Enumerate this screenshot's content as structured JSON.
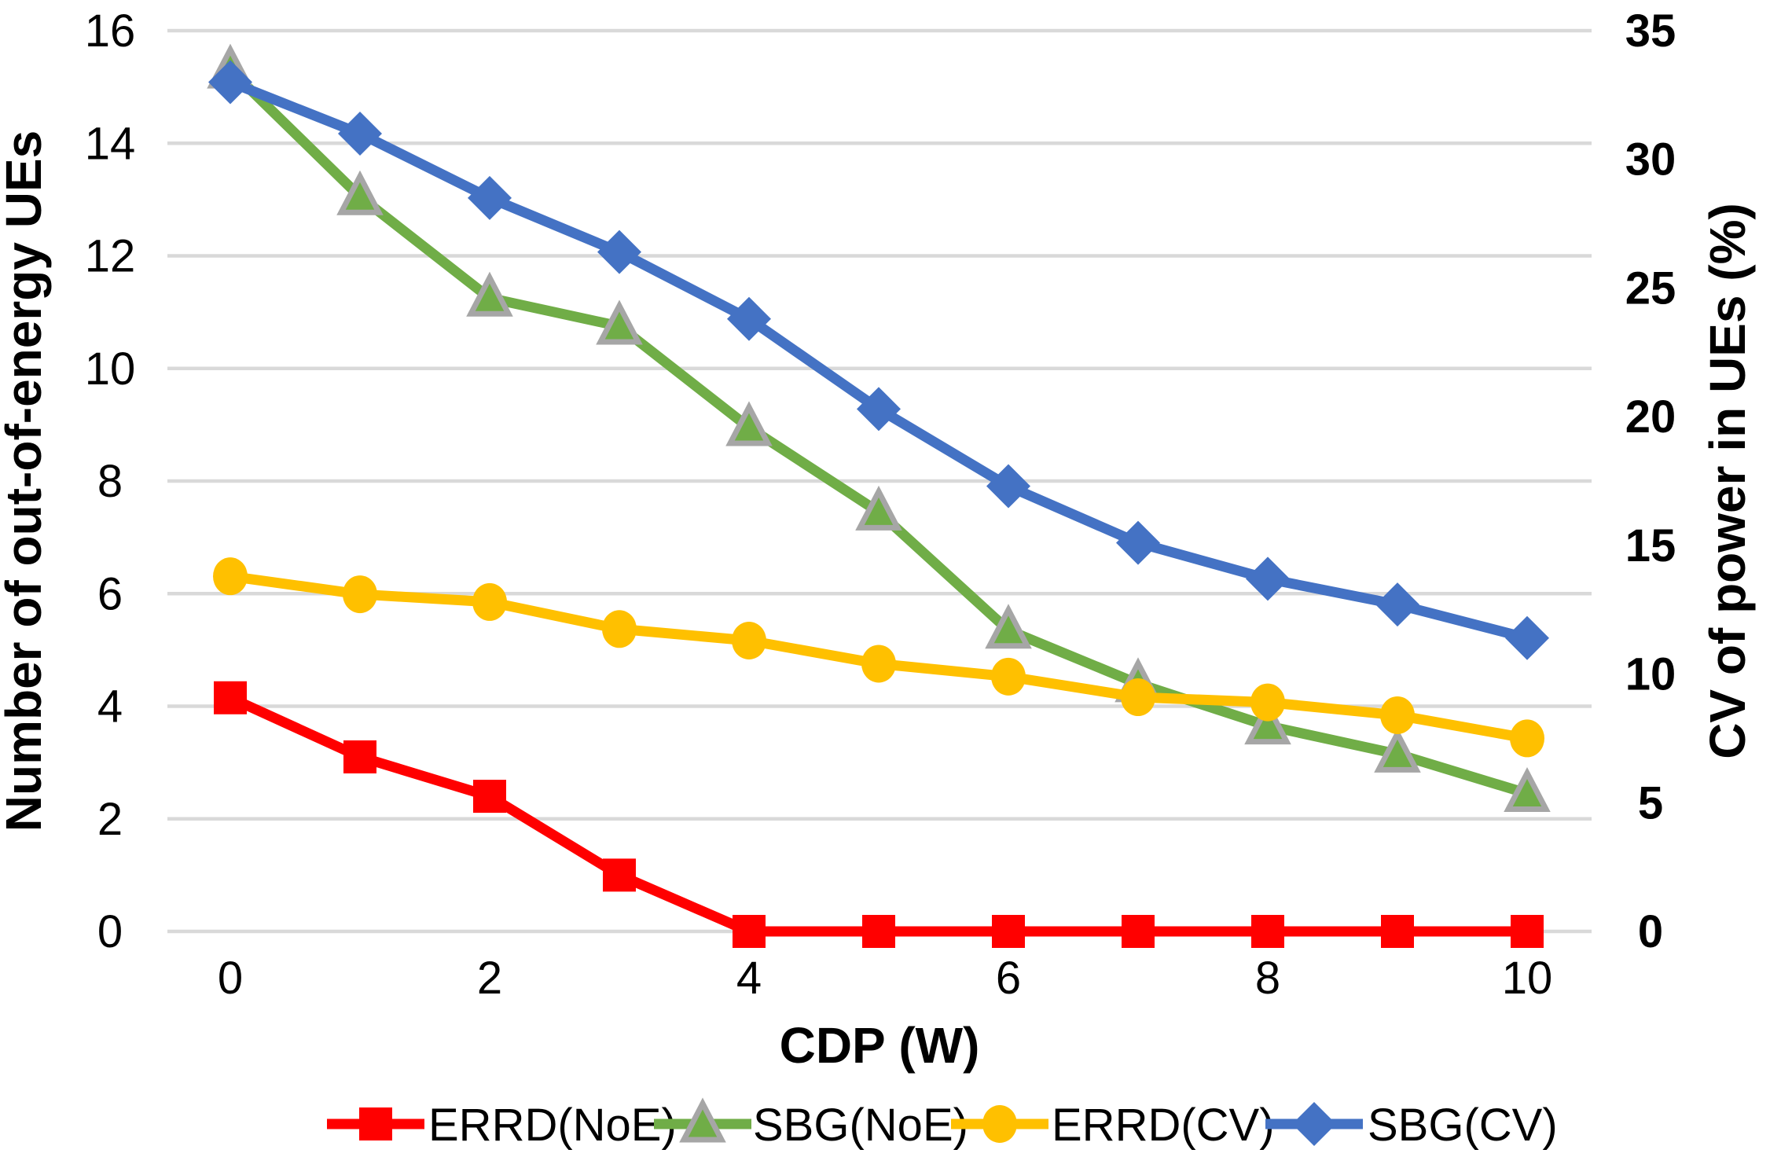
{
  "figure": {
    "background_color": "#FFFFFF",
    "grid_color": "#D9D9D9",
    "text_color": "#000000"
  },
  "chart_data": {
    "type": "line",
    "x": [
      0,
      1,
      2,
      3,
      4,
      5,
      6,
      7,
      8,
      9,
      10
    ],
    "x_axis": {
      "title": "CDP (W)",
      "tick_labels": [
        "0",
        "2",
        "4",
        "6",
        "8",
        "10"
      ],
      "tick_values": [
        0,
        2,
        4,
        6,
        8,
        10
      ],
      "range": [
        0,
        10
      ]
    },
    "left_axis": {
      "title": "Number of out-of-energy UEs",
      "ticks": [
        0,
        2,
        4,
        6,
        8,
        10,
        12,
        14,
        16
      ],
      "range": [
        0,
        16
      ]
    },
    "right_axis": {
      "title": "CV of power in UEs (%)",
      "ticks": [
        0,
        5,
        10,
        15,
        20,
        25,
        30,
        35
      ],
      "range": [
        0,
        35
      ]
    },
    "grid": true,
    "legend_position": "bottom",
    "series": [
      {
        "name": "ERRD(NoE)",
        "axis": "left",
        "color": "#FF0000",
        "marker": "square",
        "values": [
          4.15,
          3.1,
          2.4,
          1.0,
          0,
          0,
          0,
          0,
          0,
          0,
          0
        ]
      },
      {
        "name": "SBG(NoE)",
        "axis": "left",
        "color": "#70AD47",
        "marker": "triangle",
        "marker_outline": "#A6A6A6",
        "values": [
          15.3,
          13.05,
          11.25,
          10.75,
          8.95,
          7.45,
          5.35,
          4.4,
          3.65,
          3.15,
          2.45
        ]
      },
      {
        "name": "ERRD(CV)",
        "axis": "right",
        "color": "#FFC000",
        "marker": "circle",
        "values": [
          13.8,
          13.1,
          12.8,
          11.75,
          11.3,
          10.4,
          9.9,
          9.1,
          8.9,
          8.4,
          7.5
        ]
      },
      {
        "name": "SBG(CV)",
        "axis": "right",
        "color": "#4472C4",
        "marker": "diamond",
        "values": [
          33.0,
          31.0,
          28.5,
          26.4,
          23.8,
          20.3,
          17.3,
          15.1,
          13.7,
          12.7,
          11.4
        ]
      }
    ]
  }
}
